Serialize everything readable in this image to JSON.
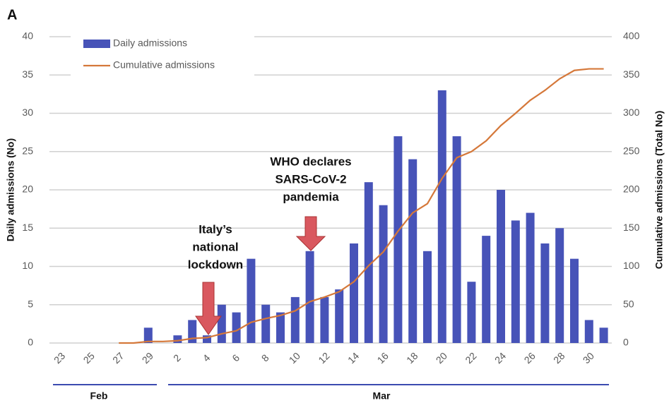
{
  "chart_data": {
    "type": "bar",
    "panel_label": "A",
    "categories": [
      "23",
      null,
      "25",
      null,
      "27",
      null,
      "29",
      null,
      "2",
      null,
      "4",
      null,
      "6",
      null,
      "8",
      null,
      "10",
      null,
      "12",
      null,
      "14",
      null,
      "16",
      null,
      "18",
      null,
      "20",
      null,
      "22",
      null,
      "24",
      null,
      "26",
      null,
      "28",
      null,
      "30",
      null
    ],
    "months": [
      "Feb",
      "Mar"
    ],
    "series": [
      {
        "name": "Daily admissions",
        "type": "bar",
        "color": "#4753b8",
        "values": [
          0,
          0,
          0,
          0,
          0,
          0,
          2,
          0,
          1,
          3,
          1,
          5,
          4,
          11,
          5,
          4,
          6,
          12,
          6,
          7,
          13,
          21,
          18,
          27,
          24,
          12,
          33,
          27,
          8,
          14,
          20,
          16,
          17,
          13,
          15,
          11,
          3,
          2
        ]
      },
      {
        "name": "Cumulative admissions",
        "type": "line",
        "axis": "y2",
        "color": "#d5783a",
        "values": [
          null,
          null,
          null,
          null,
          0,
          0,
          2,
          2,
          3,
          6,
          7,
          12,
          16,
          27,
          32,
          36,
          42,
          54,
          60,
          67,
          80,
          101,
          119,
          146,
          170,
          182,
          215,
          242,
          250,
          264,
          284,
          300,
          317,
          330,
          345,
          356,
          358,
          358
        ]
      }
    ],
    "y_label": "Daily admissions (No)",
    "y2_label": "Cumulative admissions (Total No)",
    "ylim": [
      0,
      40
    ],
    "yticks": [
      0,
      5,
      10,
      15,
      20,
      25,
      30,
      35,
      40
    ],
    "y2lim": [
      0,
      400
    ],
    "y2ticks": [
      0,
      50,
      100,
      150,
      200,
      250,
      300,
      350,
      400
    ],
    "grid": true,
    "legend": "upper left",
    "annotations": [
      {
        "lines": [
          "Italy’s",
          "national",
          "lockdown"
        ]
      },
      {
        "lines": [
          "WHO declares",
          "SARS-CoV-2",
          "pandemia"
        ]
      }
    ]
  }
}
